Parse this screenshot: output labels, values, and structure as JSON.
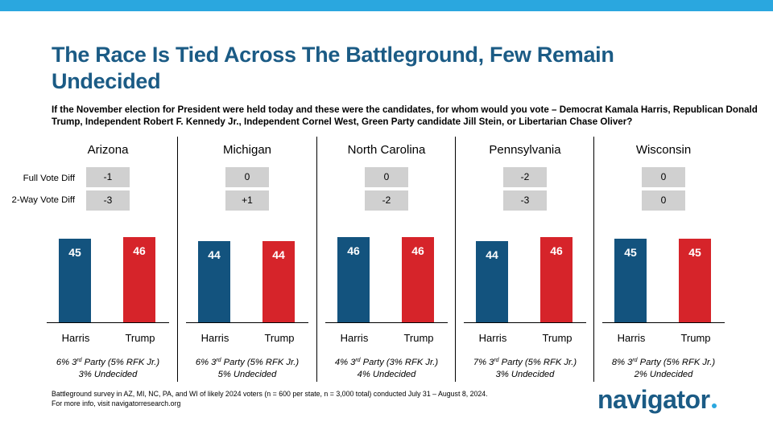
{
  "title": "The Race Is Tied Across The Battleground, Few Remain Undecided",
  "question": "If the November election for President were held today and these were the candidates, for whom would you vote – Democrat Kamala Harris, Republican Donald Trump, Independent Robert F. Kennedy Jr., Independent Cornel West, Green Party candidate Jill Stein, or Libertarian Chase Oliver?",
  "row_labels": {
    "full": "Full Vote Diff",
    "two_way": "2-Way Vote Diff"
  },
  "footnote": {
    "line1": "Battleground survey in AZ, MI, NC, PA, and WI of likely 2024 voters (n = 600 per state, n = 3,000 total) conducted July 31 – August 8, 2024.",
    "line2": "For more info, visit navigatorresearch.org"
  },
  "logo": "navigator",
  "colors": {
    "harris": "#13537e",
    "trump": "#d6242a",
    "accent": "#2aa7df",
    "title": "#1b5b85"
  },
  "chart_data": {
    "type": "bar",
    "categories": [
      "Harris",
      "Trump"
    ],
    "panels": [
      {
        "state": "Arizona",
        "full_vote_diff": "-1",
        "two_way_vote_diff": "-3",
        "harris": 45,
        "trump": 46,
        "third_party": "6% 3rd Party (5% RFK Jr.)",
        "undecided": "3% Undecided"
      },
      {
        "state": "Michigan",
        "full_vote_diff": "0",
        "two_way_vote_diff": "+1",
        "harris": 44,
        "trump": 44,
        "third_party": "6% 3rd Party (5% RFK Jr.)",
        "undecided": "5% Undecided"
      },
      {
        "state": "North Carolina",
        "full_vote_diff": "0",
        "two_way_vote_diff": "-2",
        "harris": 46,
        "trump": 46,
        "third_party": "4% 3rd Party (3% RFK Jr.)",
        "undecided": "4% Undecided"
      },
      {
        "state": "Pennsylvania",
        "full_vote_diff": "-2",
        "two_way_vote_diff": "-3",
        "harris": 44,
        "trump": 46,
        "third_party": "7% 3rd Party (5% RFK Jr.)",
        "undecided": "3% Undecided"
      },
      {
        "state": "Wisconsin",
        "full_vote_diff": "0",
        "two_way_vote_diff": "0",
        "harris": 45,
        "trump": 45,
        "third_party": "8% 3rd Party (5% RFK Jr.)",
        "undecided": "2% Undecided"
      }
    ]
  }
}
